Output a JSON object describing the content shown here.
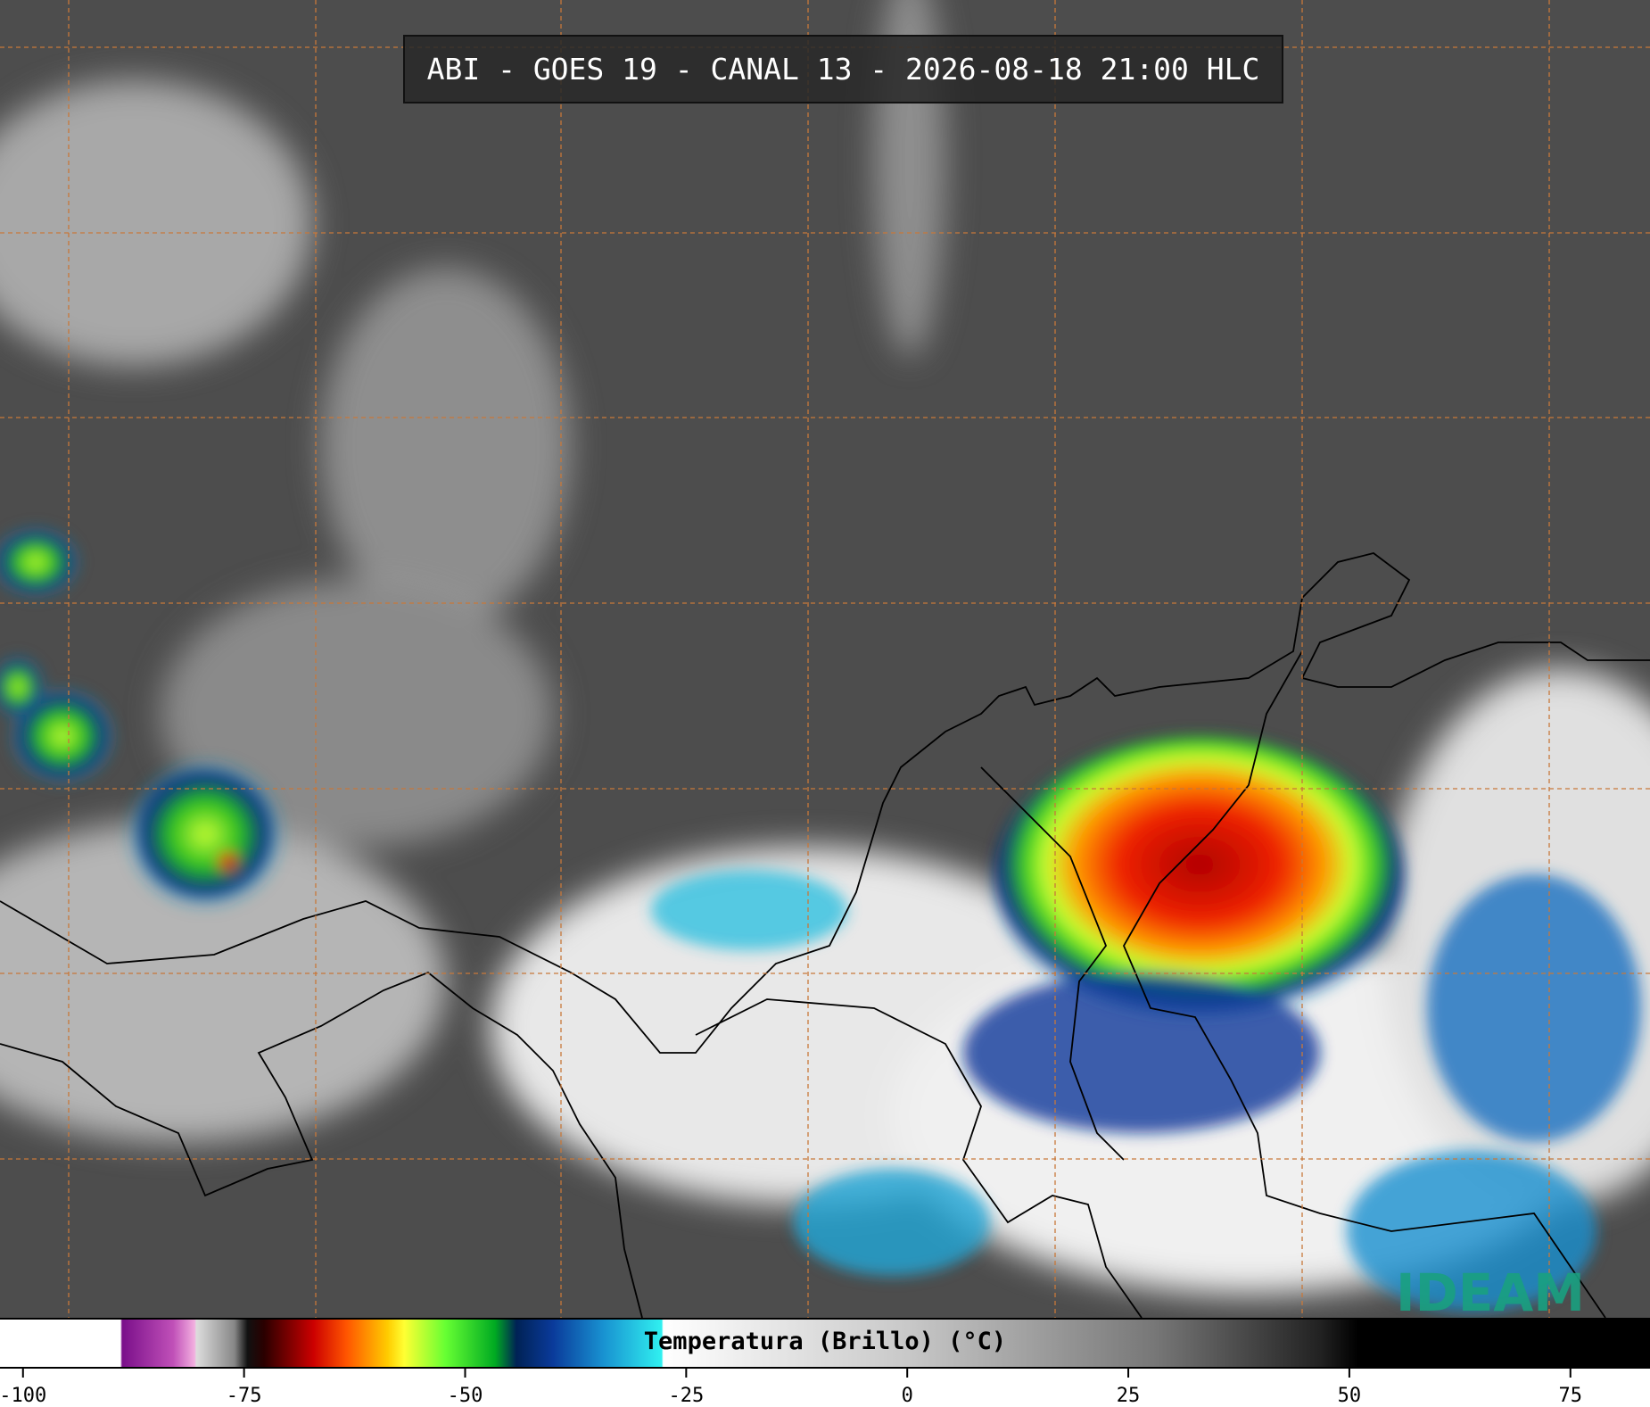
{
  "title": "ABI - GOES 19 - CANAL 13 - 2026-08-18 21:00 HLC",
  "colorbar": {
    "label": "Temperatura (Brillo) (°C)",
    "range": [
      -102.6,
      84
    ],
    "ticks": [
      -100,
      -75,
      -50,
      -25,
      0,
      25,
      50,
      75
    ]
  },
  "logo": "IDEAM"
}
